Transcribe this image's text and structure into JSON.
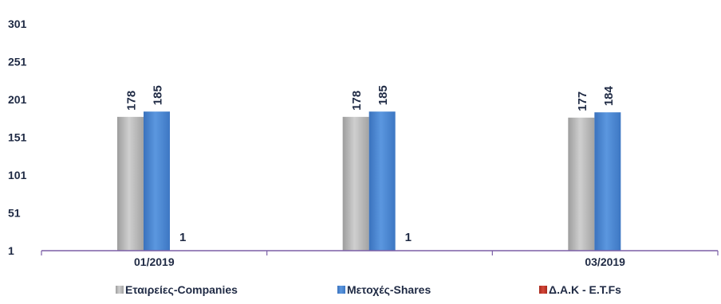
{
  "chart_data": {
    "type": "bar",
    "categories": [
      "01/2019",
      "",
      "03/2019"
    ],
    "series": [
      {
        "name": "Εταιρείες-Companies",
        "values": [
          178,
          178,
          177
        ],
        "color": "#b5b5b5"
      },
      {
        "name": "Μετοχές-Shares",
        "values": [
          185,
          185,
          184
        ],
        "color": "#4a86d0"
      },
      {
        "name": "Δ.Α.Κ - E.T.Fs",
        "values": [
          1,
          1,
          null
        ],
        "color": "#c0392b"
      }
    ],
    "y_ticks": [
      "1",
      "51",
      "101",
      "151",
      "201",
      "251",
      "301"
    ],
    "ylim": [
      1,
      301
    ],
    "grid": false,
    "legend_position": "bottom",
    "title": "",
    "xlabel": "",
    "ylabel": ""
  }
}
